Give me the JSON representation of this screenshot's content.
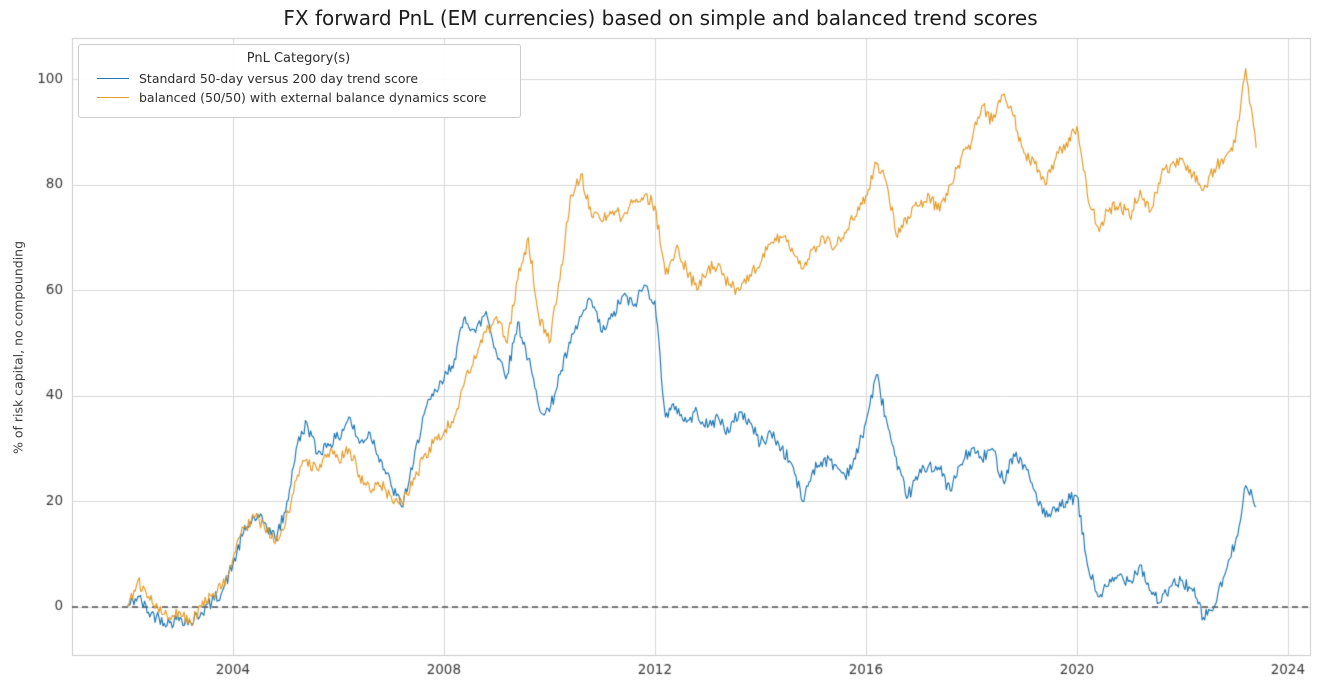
{
  "chart_data": {
    "type": "line",
    "title": "FX forward PnL (EM currencies) based on simple and balanced trend scores",
    "xlabel": "",
    "ylabel": "% of risk capital, no compounding",
    "legend_title": "PnL Category(s)",
    "legend_position": "upper-left",
    "grid": true,
    "background_color": "#ffffff",
    "grid_color": "#d9d9d9",
    "spine_color": "#cccccc",
    "zero_line": {
      "y": 0,
      "style": "dashed",
      "color": "#000000"
    },
    "xlim": [
      2000.95,
      2024.42
    ],
    "ylim": [
      -9.1,
      107.8
    ],
    "xticks": [
      2004,
      2008,
      2012,
      2016,
      2020,
      2024
    ],
    "yticks": [
      0,
      20,
      40,
      60,
      80,
      100
    ],
    "x": [
      2002.0,
      2002.2,
      2002.4,
      2002.6,
      2002.8,
      2003.0,
      2003.2,
      2003.4,
      2003.6,
      2003.8,
      2004.0,
      2004.2,
      2004.4,
      2004.6,
      2004.8,
      2005.0,
      2005.2,
      2005.4,
      2005.6,
      2005.8,
      2006.0,
      2006.2,
      2006.4,
      2006.6,
      2006.8,
      2007.0,
      2007.2,
      2007.4,
      2007.6,
      2007.8,
      2008.0,
      2008.2,
      2008.4,
      2008.6,
      2008.8,
      2009.0,
      2009.2,
      2009.4,
      2009.6,
      2009.8,
      2010.0,
      2010.2,
      2010.4,
      2010.6,
      2010.8,
      2011.0,
      2011.2,
      2011.4,
      2011.6,
      2011.8,
      2012.0,
      2012.2,
      2012.4,
      2012.6,
      2012.8,
      2013.0,
      2013.2,
      2013.4,
      2013.6,
      2013.8,
      2014.0,
      2014.2,
      2014.4,
      2014.6,
      2014.8,
      2015.0,
      2015.2,
      2015.4,
      2015.6,
      2015.8,
      2016.0,
      2016.2,
      2016.4,
      2016.6,
      2016.8,
      2017.0,
      2017.2,
      2017.4,
      2017.6,
      2017.8,
      2018.0,
      2018.2,
      2018.4,
      2018.6,
      2018.8,
      2019.0,
      2019.2,
      2019.4,
      2019.6,
      2019.8,
      2020.0,
      2020.2,
      2020.4,
      2020.6,
      2020.8,
      2021.0,
      2021.2,
      2021.4,
      2021.6,
      2021.8,
      2022.0,
      2022.2,
      2022.4,
      2022.6,
      2022.8,
      2023.0,
      2023.2,
      2023.4
    ],
    "series": [
      {
        "name": "Standard 50-day versus 200 day trend score",
        "color": "#1f77b4",
        "values": [
          0,
          2,
          -1,
          -2,
          -3,
          -2,
          -3,
          -1,
          1,
          3,
          8,
          14,
          17,
          16,
          13,
          18,
          30,
          35,
          29,
          31,
          32,
          36,
          31,
          33,
          28,
          23,
          19,
          26,
          36,
          40,
          43,
          47,
          55,
          52,
          56,
          48,
          44,
          54,
          47,
          38,
          37,
          44,
          50,
          55,
          58,
          52,
          55,
          59,
          57,
          61,
          58,
          36,
          38,
          35,
          37,
          34,
          36,
          33,
          37,
          35,
          31,
          33,
          30,
          27,
          20,
          26,
          28,
          27,
          25,
          28,
          35,
          44,
          35,
          26,
          21,
          25,
          27,
          26,
          22,
          27,
          30,
          28,
          30,
          24,
          29,
          27,
          22,
          17,
          18,
          20,
          21,
          8,
          2,
          4,
          6,
          5,
          8,
          3,
          1,
          4,
          5,
          3,
          -2,
          0,
          6,
          12,
          23,
          19
        ]
      },
      {
        "name": "balanced (50/50) with external balance dynamics score",
        "color": "#e39b28",
        "values": [
          0,
          5,
          2,
          -1,
          -2,
          -1,
          -3,
          0,
          2,
          4,
          9,
          15,
          17,
          15,
          12,
          16,
          24,
          28,
          26,
          29,
          28,
          30,
          25,
          22,
          23,
          21,
          20,
          23,
          28,
          31,
          33,
          36,
          43,
          47,
          52,
          55,
          50,
          62,
          70,
          55,
          50,
          62,
          78,
          82,
          74,
          73,
          75,
          74,
          77,
          78,
          76,
          63,
          68,
          64,
          60,
          64,
          65,
          61,
          60,
          63,
          65,
          69,
          70,
          68,
          64,
          68,
          70,
          68,
          71,
          74,
          78,
          84,
          80,
          70,
          74,
          76,
          78,
          75,
          80,
          85,
          88,
          95,
          92,
          97,
          93,
          86,
          84,
          80,
          85,
          88,
          91,
          78,
          72,
          75,
          76,
          74,
          79,
          75,
          82,
          84,
          85,
          82,
          79,
          83,
          85,
          88,
          102,
          87
        ]
      }
    ]
  }
}
